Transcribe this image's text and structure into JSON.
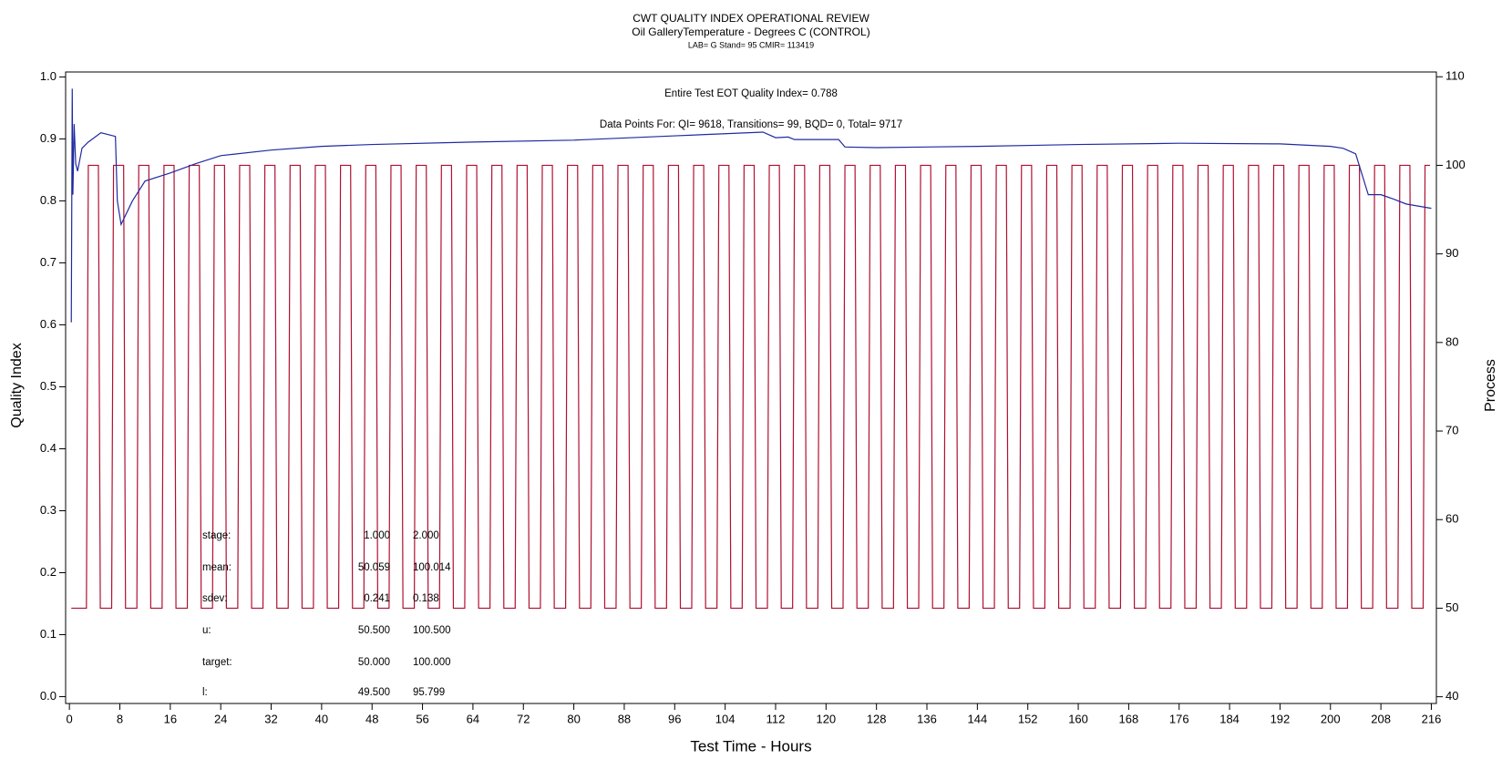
{
  "chart_data": {
    "type": "line",
    "title": "CWT QUALITY INDEX OPERATIONAL REVIEW",
    "subtitle": "Oil GalleryTemperature - Degrees C (CONTROL)",
    "subtitle2": "LAB= G Stand= 95 CMIR= 113419",
    "x_label": "Test Time - Hours",
    "y_label": "Quality Index",
    "y2_label": "Process",
    "annotations": [
      "Entire Test EOT Quality Index=  0.788",
      "Data Points For: QI=  9618, Transitions=   99, BQD=    0, Total=  9717"
    ],
    "stats": {
      "rows": [
        [
          "stage:",
          "1.000",
          "2.000"
        ],
        [
          "mean:",
          "50.059",
          "100.014"
        ],
        [
          "sdev:",
          "0.241",
          "0.138"
        ],
        [
          "u:",
          "50.500",
          "100.500"
        ],
        [
          "target:",
          "50.000",
          "100.000"
        ],
        [
          "l:",
          "49.500",
          "95.799"
        ]
      ]
    },
    "xlim": [
      -0.6,
      216.8
    ],
    "xticks": [
      0,
      8,
      16,
      24,
      32,
      40,
      48,
      56,
      64,
      72,
      80,
      88,
      96,
      104,
      112,
      120,
      128,
      136,
      144,
      152,
      160,
      168,
      176,
      184,
      192,
      200,
      208,
      216
    ],
    "ylim": [
      -0.011,
      1.008
    ],
    "yticks": [
      {
        "value": 0,
        "label": "0.0"
      },
      0.1,
      0.2,
      0.3,
      0.4,
      0.5,
      0.6,
      0.7,
      0.8,
      0.9,
      {
        "value": 1,
        "label": "1.0"
      }
    ],
    "y2lim": [
      39.24,
      110.54
    ],
    "y2ticks": [
      40,
      50,
      60,
      70,
      80,
      90,
      100,
      110
    ],
    "series": [
      {
        "color": "#b01030",
        "axis": "y2",
        "x": [
          0.3,
          2.7,
          3,
          4.6,
          4.9,
          6.7,
          7,
          8.6,
          8.9,
          10.7,
          11,
          12.6,
          12.9,
          14.7,
          15,
          16.6,
          16.9,
          18.7,
          19,
          20.6,
          20.9,
          22.7,
          23,
          24.6,
          24.9,
          26.7,
          27,
          28.6,
          28.9,
          30.7,
          31,
          32.6,
          32.9,
          34.7,
          35,
          36.6,
          36.9,
          38.7,
          39,
          40.6,
          40.9,
          42.7,
          43,
          44.6,
          44.9,
          46.7,
          47,
          48.6,
          48.9,
          50.7,
          51,
          52.6,
          52.9,
          54.7,
          55,
          56.6,
          56.9,
          58.7,
          59,
          60.6,
          60.9,
          62.7,
          63,
          64.6,
          64.9,
          66.7,
          67,
          68.6,
          68.9,
          70.7,
          71,
          72.6,
          72.9,
          74.7,
          75,
          76.6,
          76.9,
          78.7,
          79,
          80.6,
          80.9,
          82.7,
          83,
          84.6,
          84.9,
          86.7,
          87,
          88.6,
          88.9,
          90.7,
          91,
          92.6,
          92.9,
          94.7,
          95,
          96.6,
          96.9,
          98.7,
          99,
          100.6,
          100.9,
          102.7,
          103,
          104.6,
          104.9,
          106.7,
          107,
          108.6,
          108.9,
          110.7,
          111,
          112.6,
          112.9,
          114.7,
          115,
          116.6,
          116.9,
          118.7,
          119,
          120.6,
          120.9,
          122.7,
          123,
          124.6,
          124.9,
          126.7,
          127,
          128.6,
          128.9,
          130.7,
          131,
          132.6,
          132.9,
          134.7,
          135,
          136.6,
          136.9,
          138.7,
          139,
          140.6,
          140.9,
          142.7,
          143,
          144.6,
          144.9,
          146.7,
          147,
          148.6,
          148.9,
          150.7,
          151,
          152.6,
          152.9,
          154.7,
          155,
          156.6,
          156.9,
          158.7,
          159,
          160.6,
          160.9,
          162.7,
          163,
          164.6,
          164.9,
          166.7,
          167,
          168.6,
          168.9,
          170.7,
          171,
          172.6,
          172.9,
          174.7,
          175,
          176.6,
          176.9,
          178.7,
          179,
          180.6,
          180.9,
          182.7,
          183,
          184.6,
          184.9,
          186.7,
          187,
          188.6,
          188.9,
          190.7,
          191,
          192.6,
          192.9,
          194.7,
          195,
          196.6,
          196.9,
          198.7,
          199,
          200.6,
          200.9,
          202.7,
          203,
          204.6,
          204.9,
          206.7,
          207,
          208.6,
          208.9,
          210.7,
          211,
          212.6,
          212.9,
          214.7,
          215,
          215.8
        ],
        "values": [
          50,
          50,
          100,
          100,
          50,
          50,
          100,
          100,
          50,
          50,
          100,
          100,
          50,
          50,
          100,
          100,
          50,
          50,
          100,
          100,
          50,
          50,
          100,
          100,
          50,
          50,
          100,
          100,
          50,
          50,
          100,
          100,
          50,
          50,
          100,
          100,
          50,
          50,
          100,
          100,
          50,
          50,
          100,
          100,
          50,
          50,
          100,
          100,
          50,
          50,
          100,
          100,
          50,
          50,
          100,
          100,
          50,
          50,
          100,
          100,
          50,
          50,
          100,
          100,
          50,
          50,
          100,
          100,
          50,
          50,
          100,
          100,
          50,
          50,
          100,
          100,
          50,
          50,
          100,
          100,
          50,
          50,
          100,
          100,
          50,
          50,
          100,
          100,
          50,
          50,
          100,
          100,
          50,
          50,
          100,
          100,
          50,
          50,
          100,
          100,
          50,
          50,
          100,
          100,
          50,
          50,
          100,
          100,
          50,
          50,
          100,
          100,
          50,
          50,
          100,
          100,
          50,
          50,
          100,
          100,
          50,
          50,
          100,
          100,
          50,
          50,
          100,
          100,
          50,
          50,
          100,
          100,
          50,
          50,
          100,
          100,
          50,
          50,
          100,
          100,
          50,
          50,
          100,
          100,
          50,
          50,
          100,
          100,
          50,
          50,
          100,
          100,
          50,
          50,
          100,
          100,
          50,
          50,
          100,
          100,
          50,
          50,
          100,
          100,
          50,
          50,
          100,
          100,
          50,
          50,
          100,
          100,
          50,
          50,
          100,
          100,
          50,
          50,
          100,
          100,
          50,
          50,
          100,
          100,
          50,
          50,
          100,
          100,
          50,
          50,
          100,
          100,
          50,
          50,
          100,
          100,
          50,
          50,
          100,
          100,
          50,
          50,
          100,
          100,
          50,
          50,
          100,
          100,
          50,
          50,
          100,
          100,
          50,
          50,
          100,
          100
        ]
      },
      {
        "color": "#1f2aa0",
        "axis": "y",
        "x": [
          0.3,
          0.45,
          0.55,
          0.75,
          1,
          1.3,
          2,
          3,
          5,
          7.3,
          7.6,
          8.2,
          10,
          12,
          16,
          20,
          24,
          32,
          40,
          48,
          64,
          80,
          96,
          110,
          112,
          114,
          115,
          122,
          123,
          128,
          144,
          160,
          176,
          192,
          200,
          202,
          204,
          206,
          208,
          210,
          212,
          216
        ],
        "values": [
          0.604,
          0.981,
          0.81,
          0.924,
          0.86,
          0.848,
          0.885,
          0.895,
          0.91,
          0.904,
          0.8,
          0.762,
          0.8,
          0.832,
          0.845,
          0.86,
          0.873,
          0.882,
          0.888,
          0.891,
          0.895,
          0.898,
          0.905,
          0.911,
          0.902,
          0.903,
          0.899,
          0.899,
          0.887,
          0.886,
          0.888,
          0.891,
          0.893,
          0.892,
          0.888,
          0.885,
          0.876,
          0.81,
          0.81,
          0.803,
          0.795,
          0.788
        ]
      }
    ]
  }
}
